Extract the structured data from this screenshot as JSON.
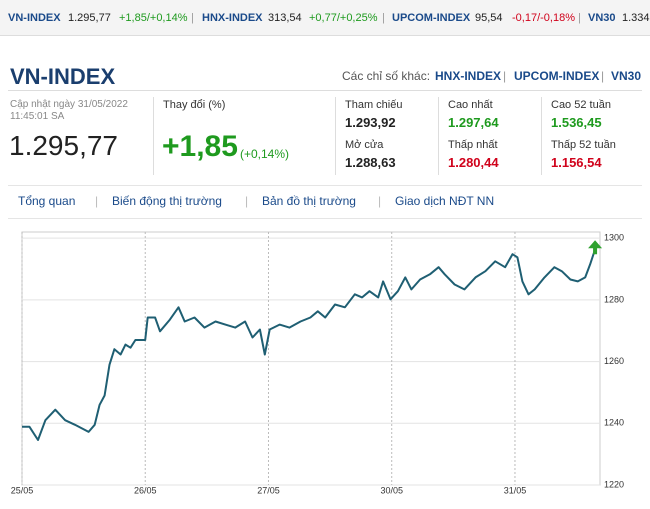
{
  "ticker": [
    {
      "name": "VN-INDEX",
      "value": "1.295,77",
      "change": "+1,85/+0,14%"
    },
    {
      "name": "HNX-INDEX",
      "value": "313,54",
      "change": "+0,77/+0,25%"
    },
    {
      "name": "UPCOM-INDEX",
      "value": "95,54",
      "change": "-0,17/-0,18%"
    },
    {
      "name": "VN30",
      "value": "1.334"
    }
  ],
  "header": {
    "title": "VN-INDEX",
    "others_label": "Các chỉ số khác:",
    "others": [
      "HNX-INDEX",
      "UPCOM-INDEX",
      "VN30"
    ]
  },
  "summary": {
    "updated_line1": "Cập nhật ngày 31/05/2022",
    "updated_line2": "11:45:01 SA",
    "price": "1.295,77",
    "change_label": "Thay đổi (%)",
    "change": "+1,85",
    "change_pct": "(+0,14%)"
  },
  "stats": [
    {
      "label": "Tham chiếu",
      "value": "1.293,92"
    },
    {
      "label": "Cao nhất",
      "value": "1.297,64"
    },
    {
      "label": "Cao 52 tuần",
      "value": "1.536,45"
    },
    {
      "label": "Mở cửa",
      "value": "1.288,63"
    },
    {
      "label": "Thấp nhất",
      "value": "1.280,44"
    },
    {
      "label": "Thấp 52 tuần",
      "value": "1.156,54"
    }
  ],
  "tabs": [
    "Tổng quan",
    "Biến động thị trường",
    "Bản đồ thị trường",
    "Giao dịch NĐT NN"
  ],
  "chart_data": {
    "type": "line",
    "color": "#1f5f73",
    "grid": true,
    "x": [
      0,
      0.06,
      0.13,
      0.19,
      0.27,
      0.35,
      0.43,
      0.54,
      0.59,
      0.63,
      0.67,
      0.71,
      0.75,
      0.8,
      0.84,
      0.88,
      0.92,
      1.0,
      1.02,
      1.08,
      1.12,
      1.2,
      1.27,
      1.32,
      1.4,
      1.48,
      1.57,
      1.65,
      1.73,
      1.81,
      1.87,
      1.93,
      1.97,
      2.01,
      2.09,
      2.17,
      2.26,
      2.34,
      2.4,
      2.46,
      2.54,
      2.62,
      2.7,
      2.76,
      2.82,
      2.89,
      2.93,
      2.99,
      3.05,
      3.11,
      3.16,
      3.23,
      3.31,
      3.38,
      3.43,
      3.51,
      3.59,
      3.68,
      3.76,
      3.84,
      3.92,
      3.98,
      4.02,
      4.06,
      4.11,
      4.16,
      4.24,
      4.32,
      4.38,
      4.45,
      4.51,
      4.57,
      4.61,
      4.65
    ],
    "values": [
      1238.9,
      1238.9,
      1234.6,
      1241,
      1244.4,
      1241,
      1239.5,
      1237.2,
      1239.5,
      1246,
      1249,
      1259,
      1264,
      1262.3,
      1265.5,
      1264.5,
      1267,
      1267,
      1274.3,
      1274.3,
      1269.8,
      1273.6,
      1277.6,
      1273,
      1274.3,
      1271,
      1273,
      1272,
      1271,
      1273,
      1267.8,
      1270.4,
      1262.3,
      1270.4,
      1272,
      1271,
      1273,
      1274.3,
      1276.3,
      1274.3,
      1278.5,
      1277.6,
      1281.8,
      1280.8,
      1282.8,
      1280.8,
      1286,
      1280.2,
      1282.8,
      1287.3,
      1283.4,
      1286.6,
      1288.3,
      1290.6,
      1288.3,
      1285,
      1283.4,
      1287.3,
      1289.3,
      1292.5,
      1290.6,
      1294.8,
      1293.8,
      1286,
      1281.8,
      1283.4,
      1287.3,
      1290.6,
      1289.3,
      1286.6,
      1286,
      1287.3,
      1291.5,
      1296.4
    ],
    "xlim": [
      0,
      4.69
    ],
    "xticks": [
      {
        "value": 0,
        "label": "25/05"
      },
      {
        "value": 1,
        "label": "26/05"
      },
      {
        "value": 2,
        "label": "27/05"
      },
      {
        "value": 3,
        "label": "30/05"
      },
      {
        "value": 4,
        "label": "31/05"
      }
    ],
    "ylim": [
      1220,
      1302
    ],
    "yticks": [
      1220,
      1240,
      1260,
      1280,
      1300
    ]
  }
}
